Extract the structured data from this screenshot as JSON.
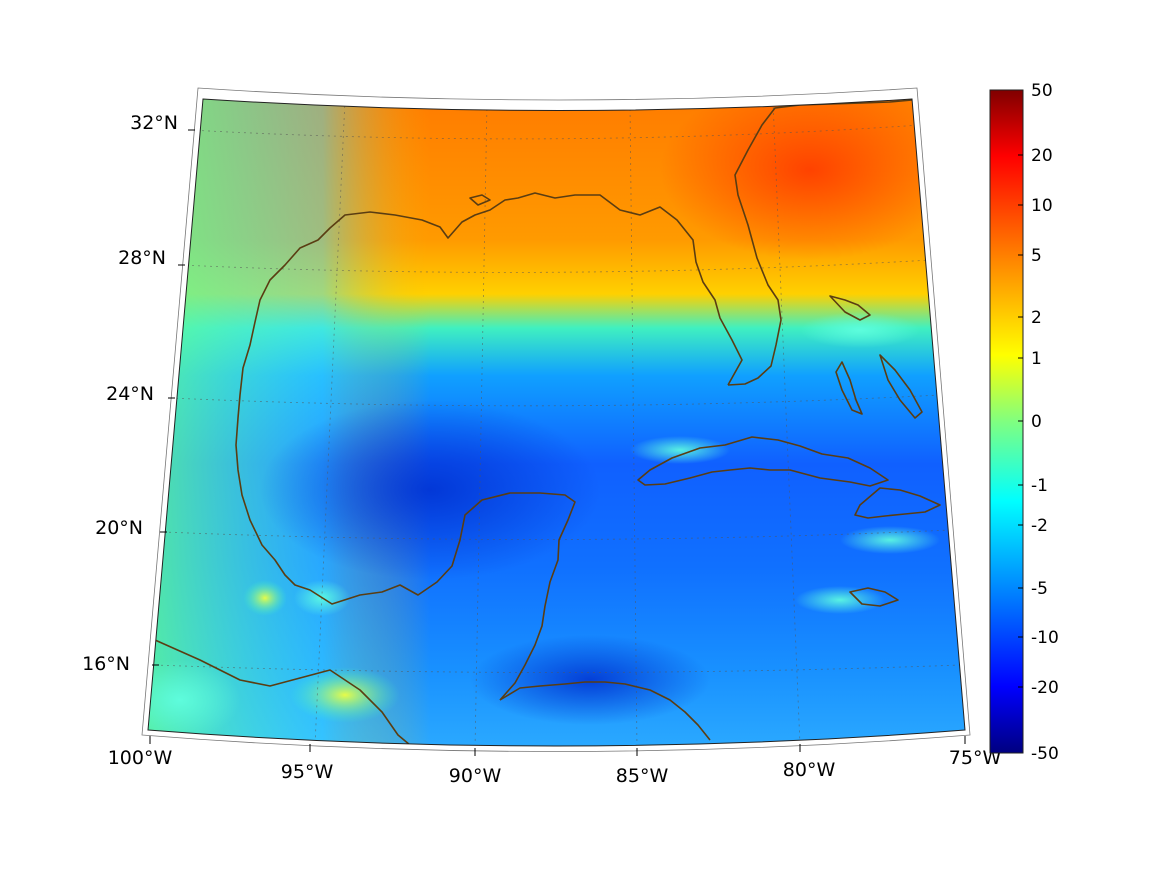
{
  "map": {
    "region": "Gulf of Mexico and Caribbean",
    "projection": "conic",
    "lon_range": [
      -100,
      -75
    ],
    "lat_range": [
      14,
      33
    ],
    "lat_ticks": [
      {
        "value": 32,
        "label": "32°N"
      },
      {
        "value": 28,
        "label": "28°N"
      },
      {
        "value": 24,
        "label": "24°N"
      },
      {
        "value": 20,
        "label": "20°N"
      },
      {
        "value": 16,
        "label": "16°N"
      }
    ],
    "lon_ticks": [
      {
        "value": -100,
        "label": "100°W"
      },
      {
        "value": -95,
        "label": "95°W"
      },
      {
        "value": -90,
        "label": "90°W"
      },
      {
        "value": -85,
        "label": "85°W"
      },
      {
        "value": -80,
        "label": "80°W"
      },
      {
        "value": -75,
        "label": "75°W"
      }
    ],
    "coastline_color": "#5a3d12"
  },
  "colorbar": {
    "colormap": "jet",
    "scale": "symmetric-log",
    "labels": [
      "50",
      "20",
      "10",
      "5",
      "2",
      "1",
      "0",
      "-1",
      "-2",
      "-5",
      "-10",
      "-20",
      "-50"
    ],
    "colors": [
      "#800000",
      "#ff0000",
      "#ff8000",
      "#ffff00",
      "#80ff80",
      "#00ffff",
      "#0080ff",
      "#0000ff",
      "#000080"
    ]
  }
}
